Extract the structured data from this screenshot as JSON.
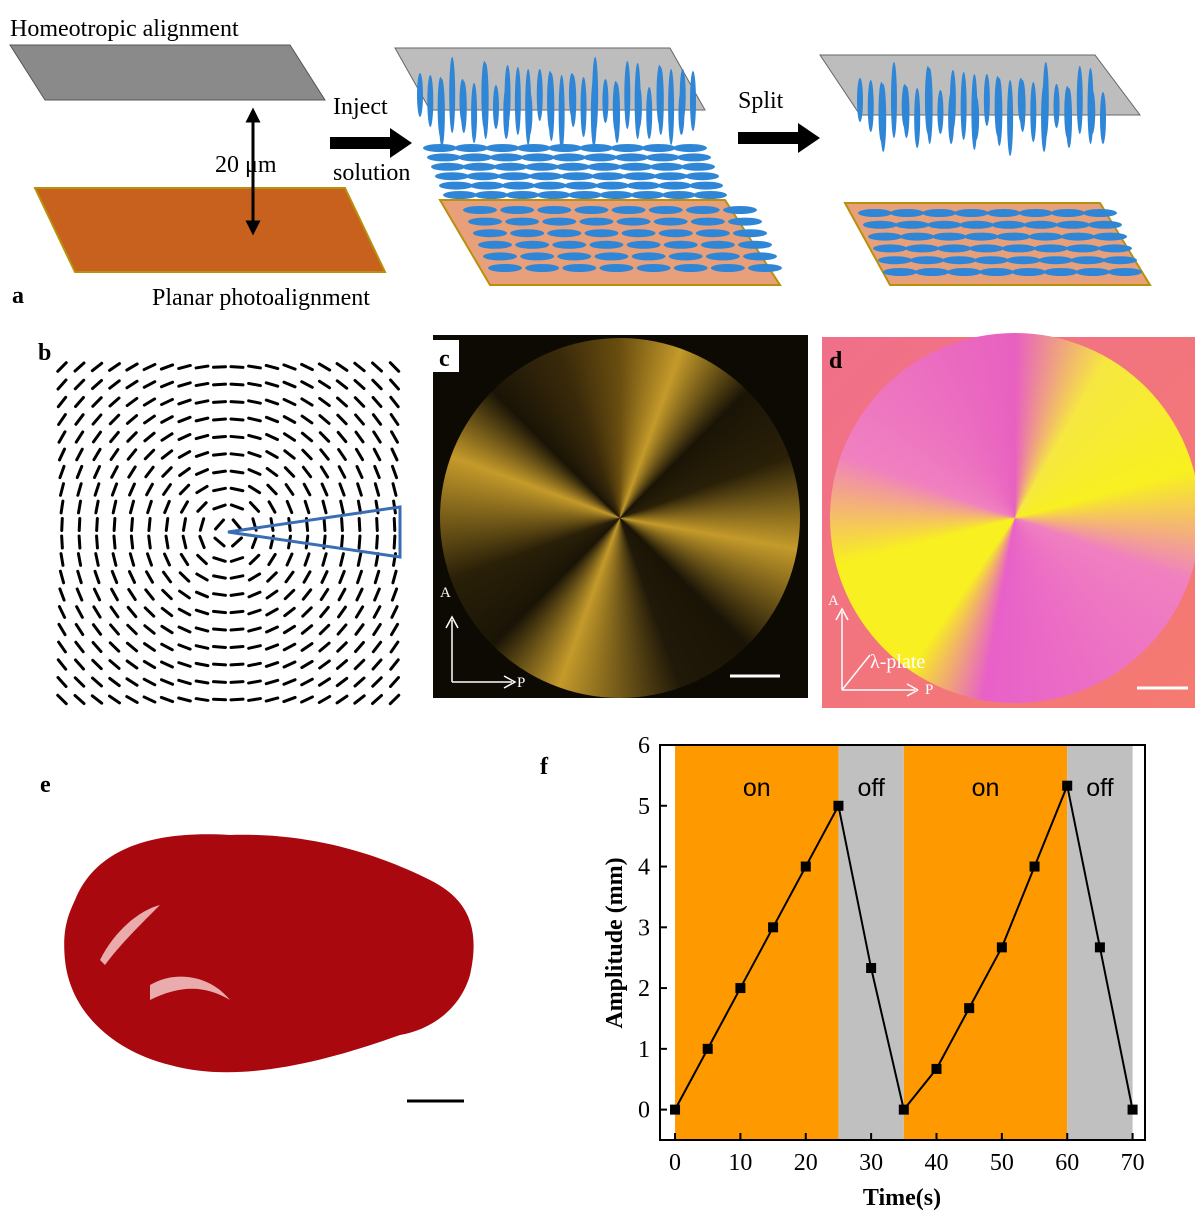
{
  "panels": {
    "a": {
      "label": "a",
      "top": "Homeotropic alignment",
      "gap": "20 μm",
      "inject": "Inject",
      "solution": "solution",
      "split": "Split",
      "bottom": "Planar photoalignment"
    },
    "b": {
      "label": "b"
    },
    "c": {
      "label": "c",
      "analyzer": "A",
      "polarizer": "P"
    },
    "d": {
      "label": "d",
      "analyzer": "A",
      "plate": "λ-plate",
      "polarizer": "P"
    },
    "e": {
      "label": "e"
    }
  },
  "chart_data": {
    "type": "line",
    "label": "f",
    "xlabel": "Time(s)",
    "ylabel": "Amplitude (mm)",
    "x": [
      0,
      5,
      10,
      15,
      20,
      25,
      30,
      35,
      40,
      45,
      50,
      55,
      60,
      65,
      70
    ],
    "values": [
      0,
      1,
      2,
      3,
      4,
      5,
      2.33,
      0,
      0.67,
      1.67,
      2.67,
      4,
      5.33,
      2.67,
      0
    ],
    "color": "#000000",
    "regions": [
      {
        "label": "on",
        "start": 0,
        "end": 25,
        "color": "#ff9900"
      },
      {
        "label": "off",
        "start": 25,
        "end": 35,
        "color": "#c0c0c0"
      },
      {
        "label": "on",
        "start": 35,
        "end": 60,
        "color": "#ff9900"
      },
      {
        "label": "off",
        "start": 60,
        "end": 70,
        "color": "#c0c0c0"
      }
    ],
    "xlim": [
      -2.3,
      71.9
    ],
    "ylim": [
      -0.5,
      6
    ],
    "xticks": [
      0,
      10,
      20,
      30,
      40,
      50,
      60,
      70
    ],
    "yticks": [
      0,
      1,
      2,
      3,
      4,
      5,
      6
    ]
  }
}
